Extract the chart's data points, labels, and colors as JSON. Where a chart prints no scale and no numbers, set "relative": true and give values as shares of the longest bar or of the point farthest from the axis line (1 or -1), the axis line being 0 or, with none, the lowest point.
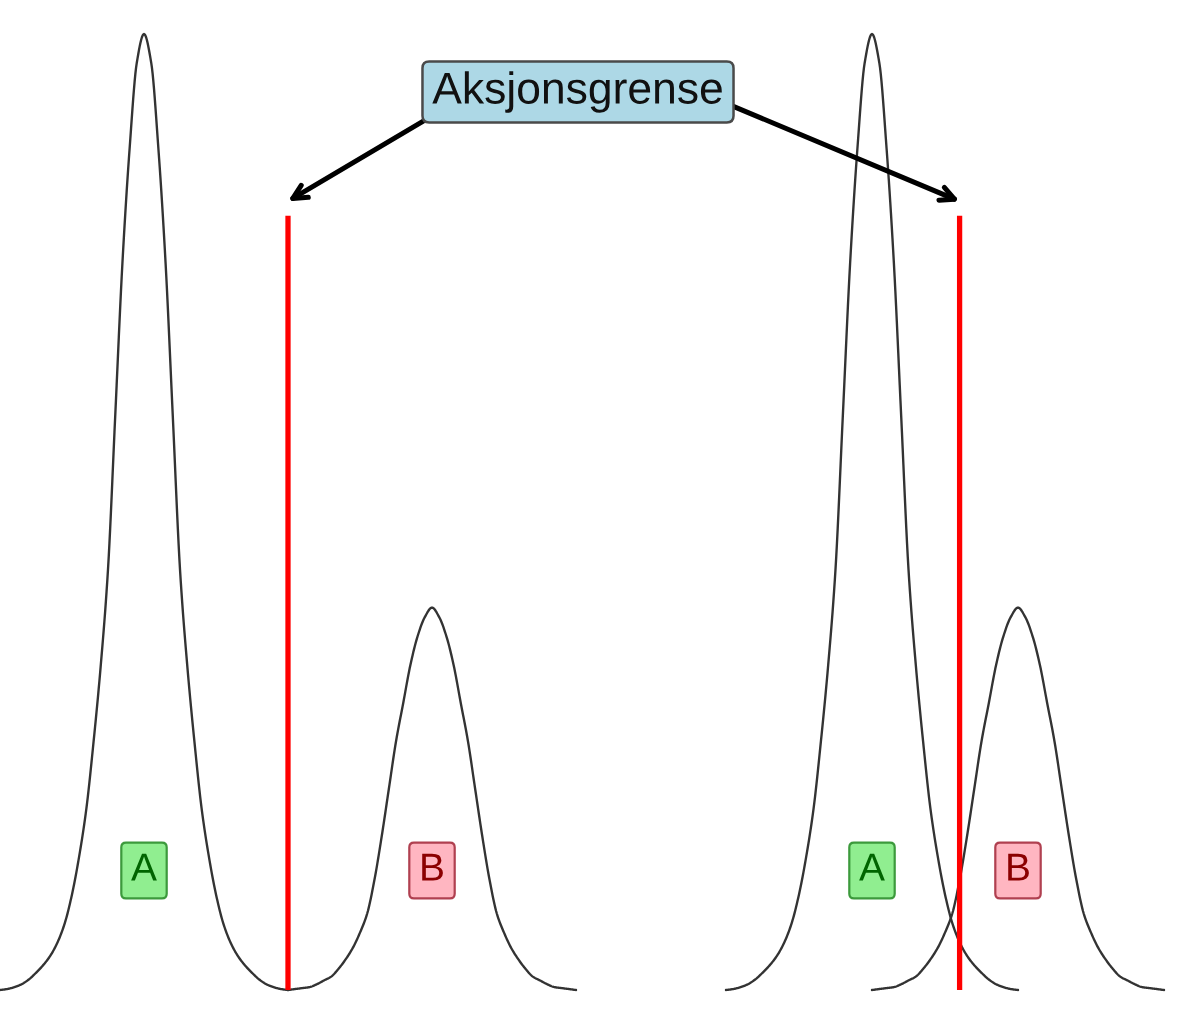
{
  "chart_data": [
    {
      "type": "line",
      "relative": true,
      "categories": [
        null,
        null,
        null,
        null,
        null,
        null,
        null,
        null,
        null,
        null,
        null,
        null,
        null,
        null,
        null,
        null,
        null,
        null,
        null,
        null,
        null,
        null,
        null,
        null,
        null,
        null,
        null,
        null,
        null,
        null,
        null,
        null,
        null,
        null,
        null,
        null,
        null,
        null,
        null,
        null,
        null,
        null,
        null,
        null,
        null,
        null,
        null,
        null,
        null,
        null,
        null,
        null,
        null,
        null,
        null,
        null,
        null,
        null,
        null,
        null,
        null,
        null,
        null,
        null,
        null,
        null,
        null,
        null,
        null,
        null,
        null,
        null,
        null,
        null,
        null,
        null,
        null,
        null,
        null,
        null,
        null
      ],
      "series": [
        {
          "name": "A",
          "color": "#333333",
          "values": [
            0,
            0.001,
            0.003,
            0.006,
            0.011,
            0.018,
            0.026,
            0.036,
            0.05,
            0.07,
            0.1,
            0.14,
            0.19,
            0.26,
            0.34,
            0.44,
            0.6,
            0.76,
            0.88,
            0.97,
            1,
            0.97,
            0.88,
            0.76,
            0.6,
            0.44,
            0.34,
            0.26,
            0.19,
            0.14,
            0.1,
            0.07,
            0.05,
            0.036,
            0.026,
            0.018,
            0.011,
            0.006,
            0.003,
            0.001,
            0,
            null,
            null,
            null,
            null,
            null,
            null,
            null,
            null,
            null,
            null,
            null,
            null,
            null,
            null,
            null,
            null,
            null,
            null,
            null,
            null,
            null,
            null,
            null,
            null,
            null,
            null,
            null,
            null,
            null,
            null,
            null,
            null,
            null,
            null,
            null,
            null,
            null,
            null,
            null,
            null
          ]
        },
        {
          "name": "B",
          "color": "#333333",
          "values": [
            null,
            null,
            null,
            null,
            null,
            null,
            null,
            null,
            null,
            null,
            null,
            null,
            null,
            null,
            null,
            null,
            null,
            null,
            null,
            null,
            null,
            null,
            null,
            null,
            null,
            null,
            null,
            null,
            null,
            null,
            null,
            null,
            null,
            null,
            null,
            null,
            null,
            null,
            null,
            null,
            0,
            0.001,
            0.002,
            0.003,
            0.006,
            0.01,
            0.014,
            0.022,
            0.032,
            0.044,
            0.06,
            0.08,
            0.115,
            0.16,
            0.21,
            0.26,
            0.3,
            0.34,
            0.37,
            0.39,
            0.4,
            0.39,
            0.37,
            0.34,
            0.3,
            0.26,
            0.21,
            0.16,
            0.115,
            0.08,
            0.06,
            0.044,
            0.032,
            0.022,
            0.014,
            0.01,
            0.006,
            0.003,
            0.002,
            0.001,
            0
          ]
        }
      ],
      "annotations": [
        "Aksjonsgrense"
      ]
    },
    {
      "type": "line",
      "relative": true,
      "categories": [
        null,
        null,
        null,
        null,
        null,
        null,
        null,
        null,
        null,
        null,
        null,
        null,
        null,
        null,
        null,
        null,
        null,
        null,
        null,
        null,
        null,
        null,
        null,
        null,
        null,
        null,
        null,
        null,
        null,
        null,
        null,
        null,
        null,
        null,
        null,
        null,
        null,
        null,
        null,
        null,
        null,
        null,
        null,
        null,
        null,
        null,
        null,
        null,
        null,
        null,
        null,
        null,
        null,
        null,
        null,
        null,
        null,
        null,
        null,
        null,
        null
      ],
      "series": [
        {
          "name": "A",
          "color": "#333333",
          "values": [
            0,
            0.001,
            0.003,
            0.006,
            0.011,
            0.018,
            0.026,
            0.036,
            0.05,
            0.07,
            0.1,
            0.14,
            0.19,
            0.26,
            0.34,
            0.44,
            0.6,
            0.76,
            0.88,
            0.97,
            1,
            0.97,
            0.88,
            0.76,
            0.6,
            0.44,
            0.34,
            0.26,
            0.19,
            0.14,
            0.1,
            0.07,
            0.05,
            0.036,
            0.026,
            0.018,
            0.011,
            0.006,
            0.003,
            0.001,
            0,
            null,
            null,
            null,
            null,
            null,
            null,
            null,
            null,
            null,
            null,
            null,
            null,
            null,
            null,
            null,
            null,
            null,
            null,
            null,
            null
          ]
        },
        {
          "name": "B",
          "color": "#333333",
          "values": [
            null,
            null,
            null,
            null,
            null,
            null,
            null,
            null,
            null,
            null,
            null,
            null,
            null,
            null,
            null,
            null,
            null,
            null,
            null,
            null,
            0,
            0.001,
            0.002,
            0.003,
            0.006,
            0.01,
            0.014,
            0.022,
            0.032,
            0.044,
            0.06,
            0.08,
            0.115,
            0.16,
            0.21,
            0.26,
            0.3,
            0.34,
            0.37,
            0.39,
            0.4,
            0.39,
            0.37,
            0.34,
            0.3,
            0.26,
            0.21,
            0.16,
            0.115,
            0.08,
            0.06,
            0.044,
            0.032,
            0.022,
            0.014,
            0.01,
            0.006,
            0.003,
            0.002,
            0.001,
            0
          ]
        }
      ]
    }
  ]
}
